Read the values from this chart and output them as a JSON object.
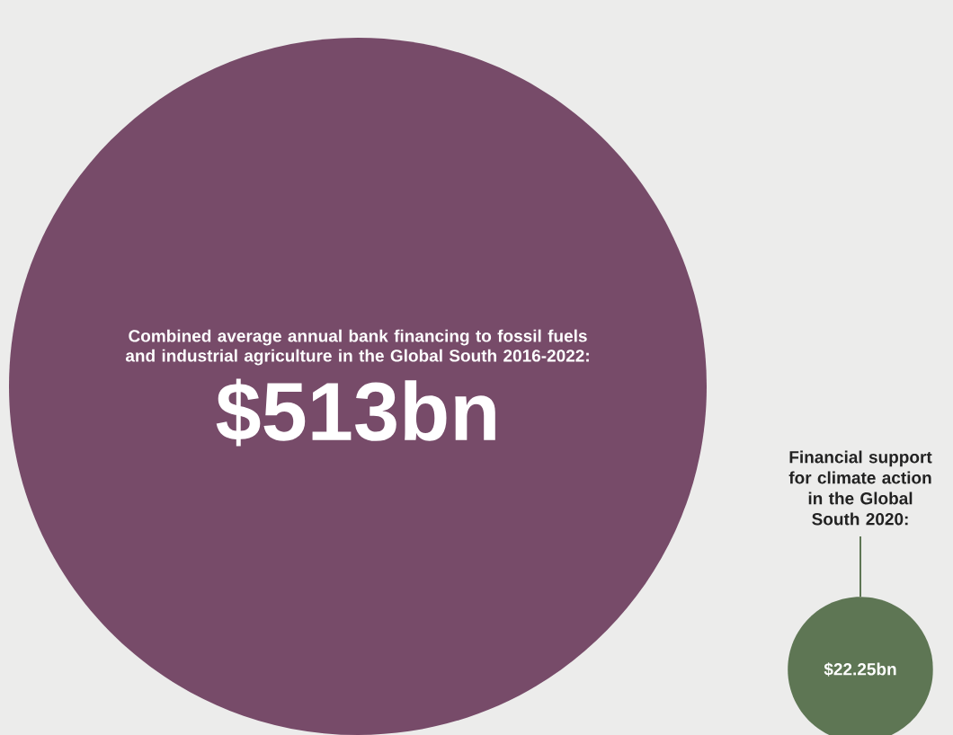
{
  "chart_data": {
    "type": "other",
    "annotations": [
      "Combined average annual bank financing to fossil fuels and industrial agriculture in the Global South 2016-2022:",
      "Financial support for climate action in the Global South 2020:"
    ],
    "values": [
      513,
      22.25
    ],
    "value_labels": [
      "$513bn",
      "$22.25bn"
    ],
    "colors": [
      "#774b69",
      "#5e7654"
    ]
  }
}
